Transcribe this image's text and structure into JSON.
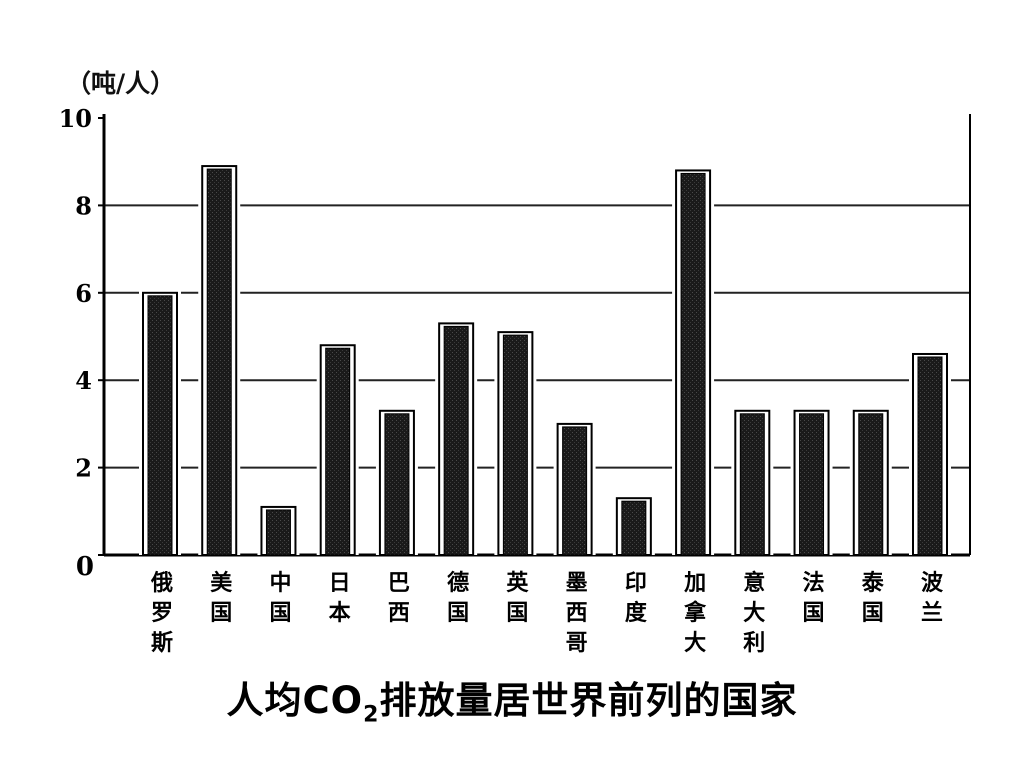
{
  "chart_data": {
    "type": "bar",
    "title_parts": [
      "人均CO",
      "2",
      "排放量居世界前列的国家"
    ],
    "ylabel": "（吨/人）",
    "xlabel": "",
    "ylim": [
      0,
      10
    ],
    "yticks": [
      0,
      2,
      4,
      6,
      8,
      10
    ],
    "categories": [
      "俄罗斯",
      "美国",
      "中国",
      "日本",
      "巴西",
      "德国",
      "英国",
      "墨西哥",
      "印度",
      "加拿大",
      "意大利",
      "法国",
      "泰国",
      "波兰"
    ],
    "values": [
      6.0,
      8.9,
      1.1,
      4.8,
      3.3,
      5.3,
      5.1,
      3.0,
      1.3,
      8.8,
      3.3,
      3.3,
      3.3,
      4.6
    ],
    "grid": true,
    "legend": "none",
    "colors": {
      "bar_fill": "#1a1a1a",
      "bar_edge": "#000000",
      "axis": "#000000",
      "grid": "#222222"
    }
  }
}
